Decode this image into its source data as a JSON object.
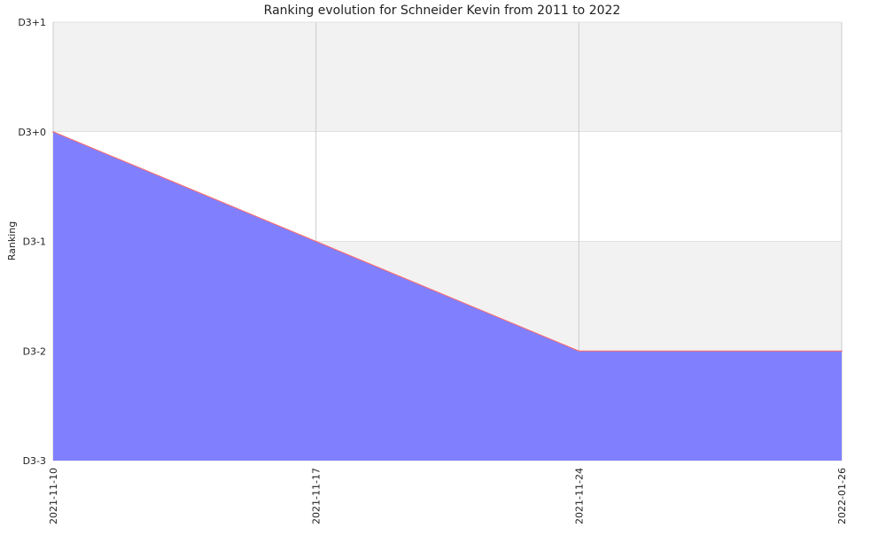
{
  "chart_data": {
    "type": "area",
    "title": "Ranking evolution for Schneider Kevin from 2011 to 2022",
    "xlabel": "",
    "ylabel": "Ranking",
    "x_categories": [
      "2021-11-10",
      "2021-11-17",
      "2021-11-24",
      "2022-01-26"
    ],
    "y_ticks": [
      "D3+1",
      "D3+0",
      "D3-1",
      "D3-2",
      "D3-3"
    ],
    "y_tick_values": [
      1,
      0,
      -1,
      -2,
      -3
    ],
    "ylim": [
      -3,
      1
    ],
    "series": [
      {
        "values": [
          0,
          -1,
          -2,
          -2
        ]
      }
    ],
    "grid": true,
    "colors": {
      "fill": "#8080ff",
      "line": "#ff6a6a",
      "band": "#f2f2f2",
      "grid": "#cccccc"
    }
  }
}
